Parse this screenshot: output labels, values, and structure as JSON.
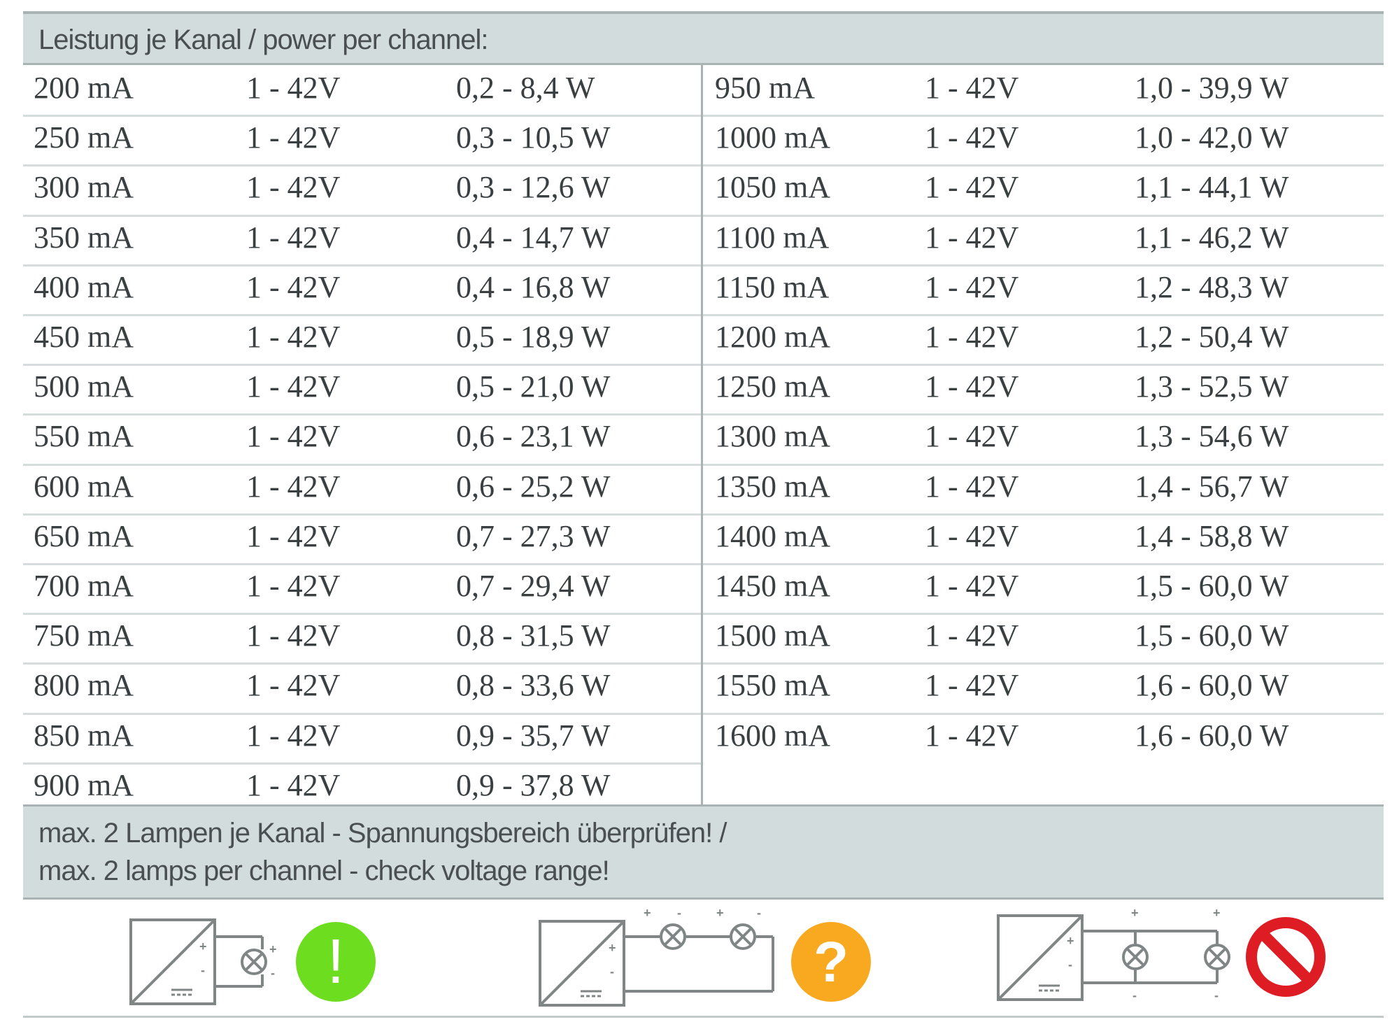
{
  "header": {
    "title": "Leistung je Kanal / power per channel:"
  },
  "table": {
    "left_rows": [
      {
        "current": "200 mA",
        "voltage": "1 - 42V",
        "power": "0,2 - 8,4 W"
      },
      {
        "current": "250 mA",
        "voltage": "1 - 42V",
        "power": "0,3 - 10,5 W"
      },
      {
        "current": "300 mA",
        "voltage": "1 - 42V",
        "power": "0,3 - 12,6 W"
      },
      {
        "current": "350 mA",
        "voltage": "1 - 42V",
        "power": "0,4 - 14,7 W"
      },
      {
        "current": "400 mA",
        "voltage": "1 - 42V",
        "power": "0,4 - 16,8 W"
      },
      {
        "current": "450 mA",
        "voltage": "1 - 42V",
        "power": "0,5 - 18,9 W"
      },
      {
        "current": "500 mA",
        "voltage": "1 - 42V",
        "power": "0,5 - 21,0 W"
      },
      {
        "current": "550 mA",
        "voltage": "1 - 42V",
        "power": "0,6 - 23,1 W"
      },
      {
        "current": "600 mA",
        "voltage": "1 - 42V",
        "power": "0,6 - 25,2 W"
      },
      {
        "current": "650 mA",
        "voltage": "1 - 42V",
        "power": "0,7 - 27,3 W"
      },
      {
        "current": "700 mA",
        "voltage": "1 - 42V",
        "power": "0,7 - 29,4 W"
      },
      {
        "current": "750 mA",
        "voltage": "1 - 42V",
        "power": "0,8 - 31,5 W"
      },
      {
        "current": "800 mA",
        "voltage": "1 - 42V",
        "power": "0,8 - 33,6 W"
      },
      {
        "current": "850 mA",
        "voltage": "1 - 42V",
        "power": "0,9 - 35,7 W"
      },
      {
        "current": "900 mA",
        "voltage": "1 - 42V",
        "power": "0,9 - 37,8 W"
      }
    ],
    "right_rows": [
      {
        "current": "950 mA",
        "voltage": "1 - 42V",
        "power": "1,0 - 39,9 W"
      },
      {
        "current": "1000 mA",
        "voltage": "1 - 42V",
        "power": "1,0 - 42,0 W"
      },
      {
        "current": "1050 mA",
        "voltage": "1 - 42V",
        "power": "1,1 - 44,1 W"
      },
      {
        "current": "1100 mA",
        "voltage": "1 - 42V",
        "power": "1,1 - 46,2 W"
      },
      {
        "current": "1150 mA",
        "voltage": "1 - 42V",
        "power": "1,2 - 48,3 W"
      },
      {
        "current": "1200 mA",
        "voltage": "1 - 42V",
        "power": "1,2 - 50,4 W"
      },
      {
        "current": "1250 mA",
        "voltage": "1 - 42V",
        "power": "1,3 - 52,5 W"
      },
      {
        "current": "1300 mA",
        "voltage": "1 - 42V",
        "power": "1,3 - 54,6 W"
      },
      {
        "current": "1350 mA",
        "voltage": "1 - 42V",
        "power": "1,4 - 56,7 W"
      },
      {
        "current": "1400 mA",
        "voltage": "1 - 42V",
        "power": "1,4 - 58,8 W"
      },
      {
        "current": "1450 mA",
        "voltage": "1 - 42V",
        "power": "1,5 - 60,0 W"
      },
      {
        "current": "1500 mA",
        "voltage": "1 - 42V",
        "power": "1,5 - 60,0 W"
      },
      {
        "current": "1550 mA",
        "voltage": "1 - 42V",
        "power": "1,6 - 60,0 W"
      },
      {
        "current": "1600 mA",
        "voltage": "1 - 42V",
        "power": "1,6 - 60,0 W"
      }
    ]
  },
  "footer": {
    "line1": "max. 2 Lampen je Kanal - Spannungsbereich überprüfen! /",
    "line2": "max. 2 lamps per channel - check voltage range!"
  },
  "diagrams": [
    {
      "name": "single-lamp",
      "status": "ok",
      "symbol": "!",
      "color": "#6dde1f"
    },
    {
      "name": "two-lamps-series",
      "status": "check",
      "symbol": "?",
      "color": "#f8a91f"
    },
    {
      "name": "two-lamps-parallel",
      "status": "forbidden",
      "symbol": "",
      "color": "#dd1d23"
    }
  ],
  "colors": {
    "banner": "#d3dcdc",
    "rule": "#a9b3b3",
    "text": "#3a3f42",
    "line_art": "#808585"
  }
}
